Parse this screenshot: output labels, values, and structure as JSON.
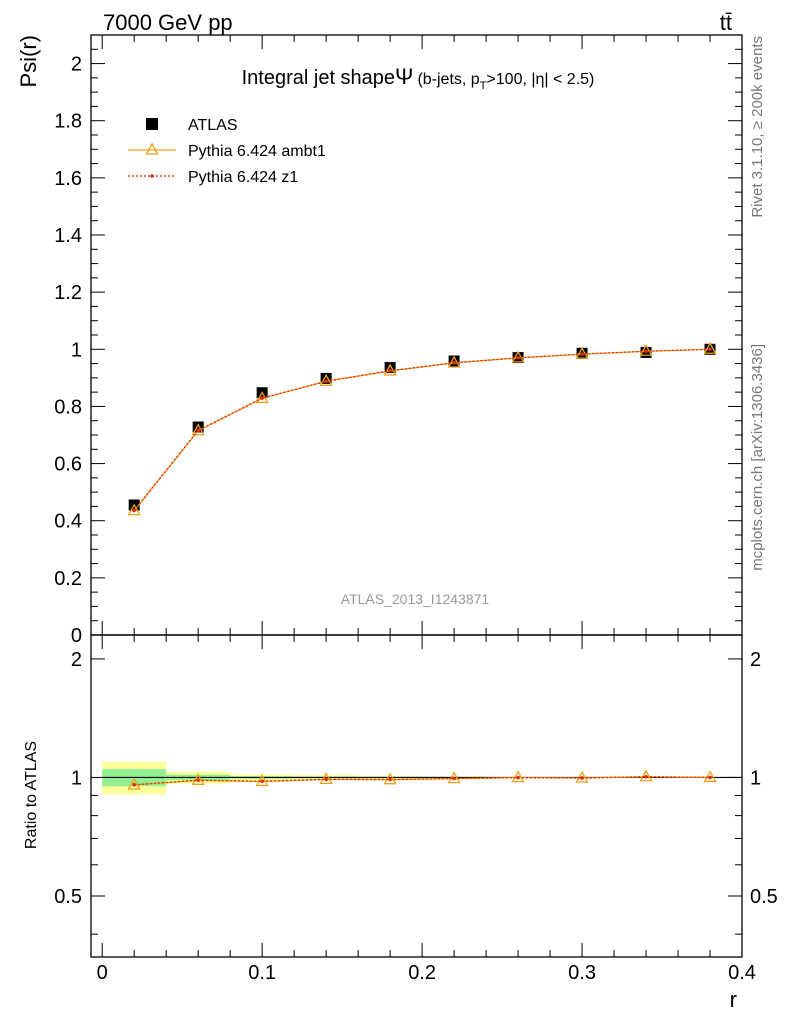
{
  "header": {
    "energy_label": "7000 GeV pp",
    "process_label": "tt̄"
  },
  "side_labels": {
    "rivet": "Rivet 3.1.10, ≥ 200k events",
    "mcplots": "mcplots.cern.ch [arXiv:1306.3436]"
  },
  "chart_data": [
    {
      "type": "scatter",
      "panel": "main",
      "title_main": "Integral jet shape",
      "title_symbol": "Ψ",
      "title_cond_a": "(b-jets, p",
      "title_sub": "T",
      "title_cond_b": ">100, |η| < 2.5)",
      "ylabel": "Psi(r)",
      "xlim": [
        -0.007,
        0.4
      ],
      "ylim": [
        0,
        2.1
      ],
      "y_ticks": [
        "0",
        "0.2",
        "0.4",
        "0.6",
        "0.8",
        "1",
        "1.2",
        "1.4",
        "1.6",
        "1.8",
        "2"
      ],
      "y_tick_values": [
        0,
        0.2,
        0.4,
        0.6,
        0.8,
        1.0,
        1.2,
        1.4,
        1.6,
        1.8,
        2.0
      ],
      "watermark": "ATLAS_2013_I1243871",
      "legend_position": "top-left",
      "x": [
        0.02,
        0.06,
        0.1,
        0.14,
        0.18,
        0.22,
        0.26,
        0.3,
        0.34,
        0.38
      ],
      "series": [
        {
          "name": "ATLAS",
          "color": "#000000",
          "marker": "square",
          "values": [
            0.455,
            0.728,
            0.848,
            0.898,
            0.936,
            0.959,
            0.971,
            0.986,
            0.989,
            1.0
          ]
        },
        {
          "name": "Pythia 6.424 ambt1",
          "color": "#e8a11b",
          "marker": "open-triangle",
          "values": [
            0.435,
            0.715,
            0.828,
            0.888,
            0.924,
            0.952,
            0.97,
            0.983,
            0.993,
            1.0
          ]
        },
        {
          "name": "Pythia 6.424 z1",
          "color": "#e8290b",
          "marker": "dot",
          "line": "dotted",
          "values": [
            0.436,
            0.716,
            0.829,
            0.888,
            0.925,
            0.953,
            0.97,
            0.983,
            0.993,
            1.0
          ]
        }
      ]
    },
    {
      "type": "scatter",
      "panel": "ratio",
      "ylabel": "Ratio to ATLAS",
      "xlabel": "r",
      "xlim": [
        -0.007,
        0.4
      ],
      "ylim": [
        0.35,
        2.3
      ],
      "y_ticks": [
        "0.5",
        "1",
        "2"
      ],
      "y_tick_values": [
        0.5,
        1,
        2
      ],
      "x_ticks": [
        "0",
        "0.1",
        "0.2",
        "0.3",
        "0.4"
      ],
      "x_tick_values": [
        0,
        0.1,
        0.2,
        0.3,
        0.4
      ],
      "bin_edges": [
        0,
        0.04,
        0.08,
        0.12,
        0.16,
        0.2,
        0.24,
        0.28,
        0.32,
        0.36,
        0.4
      ],
      "bands": {
        "stat_color": "#91f191",
        "total_color": "#ffff9d",
        "stat_lo": [
          0.95,
          0.984,
          0.993,
          0.995,
          0.996,
          0.997,
          0.999,
          0.999,
          1.0,
          1.0
        ],
        "stat_hi": [
          1.05,
          1.016,
          1.007,
          1.005,
          1.004,
          1.003,
          1.001,
          1.001,
          1.0,
          1.0
        ],
        "tot_lo": [
          0.905,
          0.965,
          0.982,
          0.986,
          0.99,
          0.993,
          0.998,
          0.999,
          1.0,
          1.0
        ],
        "tot_hi": [
          1.095,
          1.035,
          1.018,
          1.014,
          1.01,
          1.007,
          1.002,
          1.001,
          1.0,
          1.0
        ]
      },
      "x": [
        0.02,
        0.06,
        0.1,
        0.14,
        0.18,
        0.22,
        0.26,
        0.3,
        0.34,
        0.38
      ],
      "series": [
        {
          "name": "Pythia 6.424 ambt1",
          "color": "#e8a11b",
          "marker": "open-triangle",
          "values": [
            0.957,
            0.983,
            0.977,
            0.989,
            0.987,
            0.993,
            0.999,
            0.997,
            1.004,
            1.0
          ]
        },
        {
          "name": "Pythia 6.424 z1",
          "color": "#e8290b",
          "marker": "dot",
          "line": "dotted",
          "values": [
            0.958,
            0.984,
            0.978,
            0.989,
            0.988,
            0.994,
            0.999,
            0.997,
            1.004,
            1.0
          ]
        }
      ]
    }
  ]
}
